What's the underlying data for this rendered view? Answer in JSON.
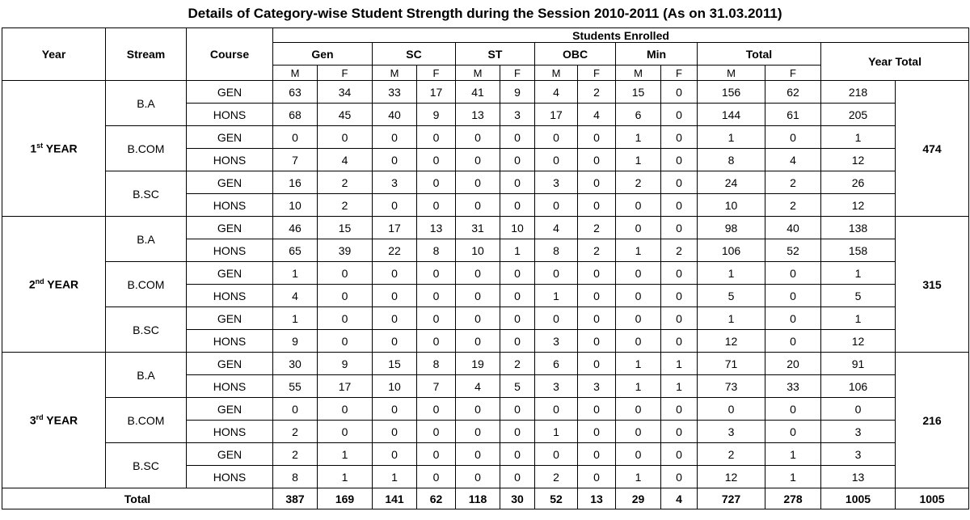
{
  "title": "Details of Category-wise Student Strength during the Session 2010-2011 (As on 31.03.2011)",
  "headers": {
    "year": "Year",
    "stream": "Stream",
    "course": "Course",
    "students_enrolled": "Students Enrolled",
    "year_total": "Year Total",
    "categories": [
      "Gen",
      "SC",
      "ST",
      "OBC",
      "Min",
      "Total"
    ],
    "m": "M",
    "f": "F"
  },
  "years": [
    {
      "label_num": "1",
      "label_sup": "st",
      "label_rest": " YEAR",
      "year_total": "474",
      "streams": [
        {
          "name": "B.A",
          "rows": [
            {
              "course": "GEN",
              "values": [
                "63",
                "34",
                "33",
                "17",
                "41",
                "9",
                "4",
                "2",
                "15",
                "0",
                "156",
                "62"
              ],
              "row_total": "218"
            },
            {
              "course": "HONS",
              "values": [
                "68",
                "45",
                "40",
                "9",
                "13",
                "3",
                "17",
                "4",
                "6",
                "0",
                "144",
                "61"
              ],
              "row_total": "205"
            }
          ]
        },
        {
          "name": "B.COM",
          "rows": [
            {
              "course": "GEN",
              "values": [
                "0",
                "0",
                "0",
                "0",
                "0",
                "0",
                "0",
                "0",
                "1",
                "0",
                "1",
                "0"
              ],
              "row_total": "1"
            },
            {
              "course": "HONS",
              "values": [
                "7",
                "4",
                "0",
                "0",
                "0",
                "0",
                "0",
                "0",
                "1",
                "0",
                "8",
                "4"
              ],
              "row_total": "12"
            }
          ]
        },
        {
          "name": "B.SC",
          "rows": [
            {
              "course": "GEN",
              "values": [
                "16",
                "2",
                "3",
                "0",
                "0",
                "0",
                "3",
                "0",
                "2",
                "0",
                "24",
                "2"
              ],
              "row_total": "26"
            },
            {
              "course": "HONS",
              "values": [
                "10",
                "2",
                "0",
                "0",
                "0",
                "0",
                "0",
                "0",
                "0",
                "0",
                "10",
                "2"
              ],
              "row_total": "12"
            }
          ]
        }
      ]
    },
    {
      "label_num": "2",
      "label_sup": "nd",
      "label_rest": " YEAR",
      "year_total": "315",
      "streams": [
        {
          "name": "B.A",
          "rows": [
            {
              "course": "GEN",
              "values": [
                "46",
                "15",
                "17",
                "13",
                "31",
                "10",
                "4",
                "2",
                "0",
                "0",
                "98",
                "40"
              ],
              "row_total": "138"
            },
            {
              "course": "HONS",
              "values": [
                "65",
                "39",
                "22",
                "8",
                "10",
                "1",
                "8",
                "2",
                "1",
                "2",
                "106",
                "52"
              ],
              "row_total": "158"
            }
          ]
        },
        {
          "name": "B.COM",
          "rows": [
            {
              "course": "GEN",
              "values": [
                "1",
                "0",
                "0",
                "0",
                "0",
                "0",
                "0",
                "0",
                "0",
                "0",
                "1",
                "0"
              ],
              "row_total": "1"
            },
            {
              "course": "HONS",
              "values": [
                "4",
                "0",
                "0",
                "0",
                "0",
                "0",
                "1",
                "0",
                "0",
                "0",
                "5",
                "0"
              ],
              "row_total": "5"
            }
          ]
        },
        {
          "name": "B.SC",
          "rows": [
            {
              "course": "GEN",
              "values": [
                "1",
                "0",
                "0",
                "0",
                "0",
                "0",
                "0",
                "0",
                "0",
                "0",
                "1",
                "0"
              ],
              "row_total": "1"
            },
            {
              "course": "HONS",
              "values": [
                "9",
                "0",
                "0",
                "0",
                "0",
                "0",
                "3",
                "0",
                "0",
                "0",
                "12",
                "0"
              ],
              "row_total": "12"
            }
          ]
        }
      ]
    },
    {
      "label_num": "3",
      "label_sup": "rd",
      "label_rest": " YEAR",
      "year_total": "216",
      "streams": [
        {
          "name": "B.A",
          "rows": [
            {
              "course": "GEN",
              "values": [
                "30",
                "9",
                "15",
                "8",
                "19",
                "2",
                "6",
                "0",
                "1",
                "1",
                "71",
                "20"
              ],
              "row_total": "91"
            },
            {
              "course": "HONS",
              "values": [
                "55",
                "17",
                "10",
                "7",
                "4",
                "5",
                "3",
                "3",
                "1",
                "1",
                "73",
                "33"
              ],
              "row_total": "106"
            }
          ]
        },
        {
          "name": "B.COM",
          "rows": [
            {
              "course": "GEN",
              "values": [
                "0",
                "0",
                "0",
                "0",
                "0",
                "0",
                "0",
                "0",
                "0",
                "0",
                "0",
                "0"
              ],
              "row_total": "0"
            },
            {
              "course": "HONS",
              "values": [
                "2",
                "0",
                "0",
                "0",
                "0",
                "0",
                "1",
                "0",
                "0",
                "0",
                "3",
                "0"
              ],
              "row_total": "3"
            }
          ]
        },
        {
          "name": "B.SC",
          "rows": [
            {
              "course": "GEN",
              "values": [
                "2",
                "1",
                "0",
                "0",
                "0",
                "0",
                "0",
                "0",
                "0",
                "0",
                "2",
                "1"
              ],
              "row_total": "3"
            },
            {
              "course": "HONS",
              "values": [
                "8",
                "1",
                "1",
                "0",
                "0",
                "0",
                "2",
                "0",
                "1",
                "0",
                "12",
                "1"
              ],
              "row_total": "13"
            }
          ]
        }
      ]
    }
  ],
  "total_row": {
    "label": "Total",
    "values": [
      "387",
      "169",
      "141",
      "62",
      "118",
      "30",
      "52",
      "13",
      "29",
      "4",
      "727",
      "278"
    ],
    "row_total": "1005",
    "grand_total": "1005"
  }
}
